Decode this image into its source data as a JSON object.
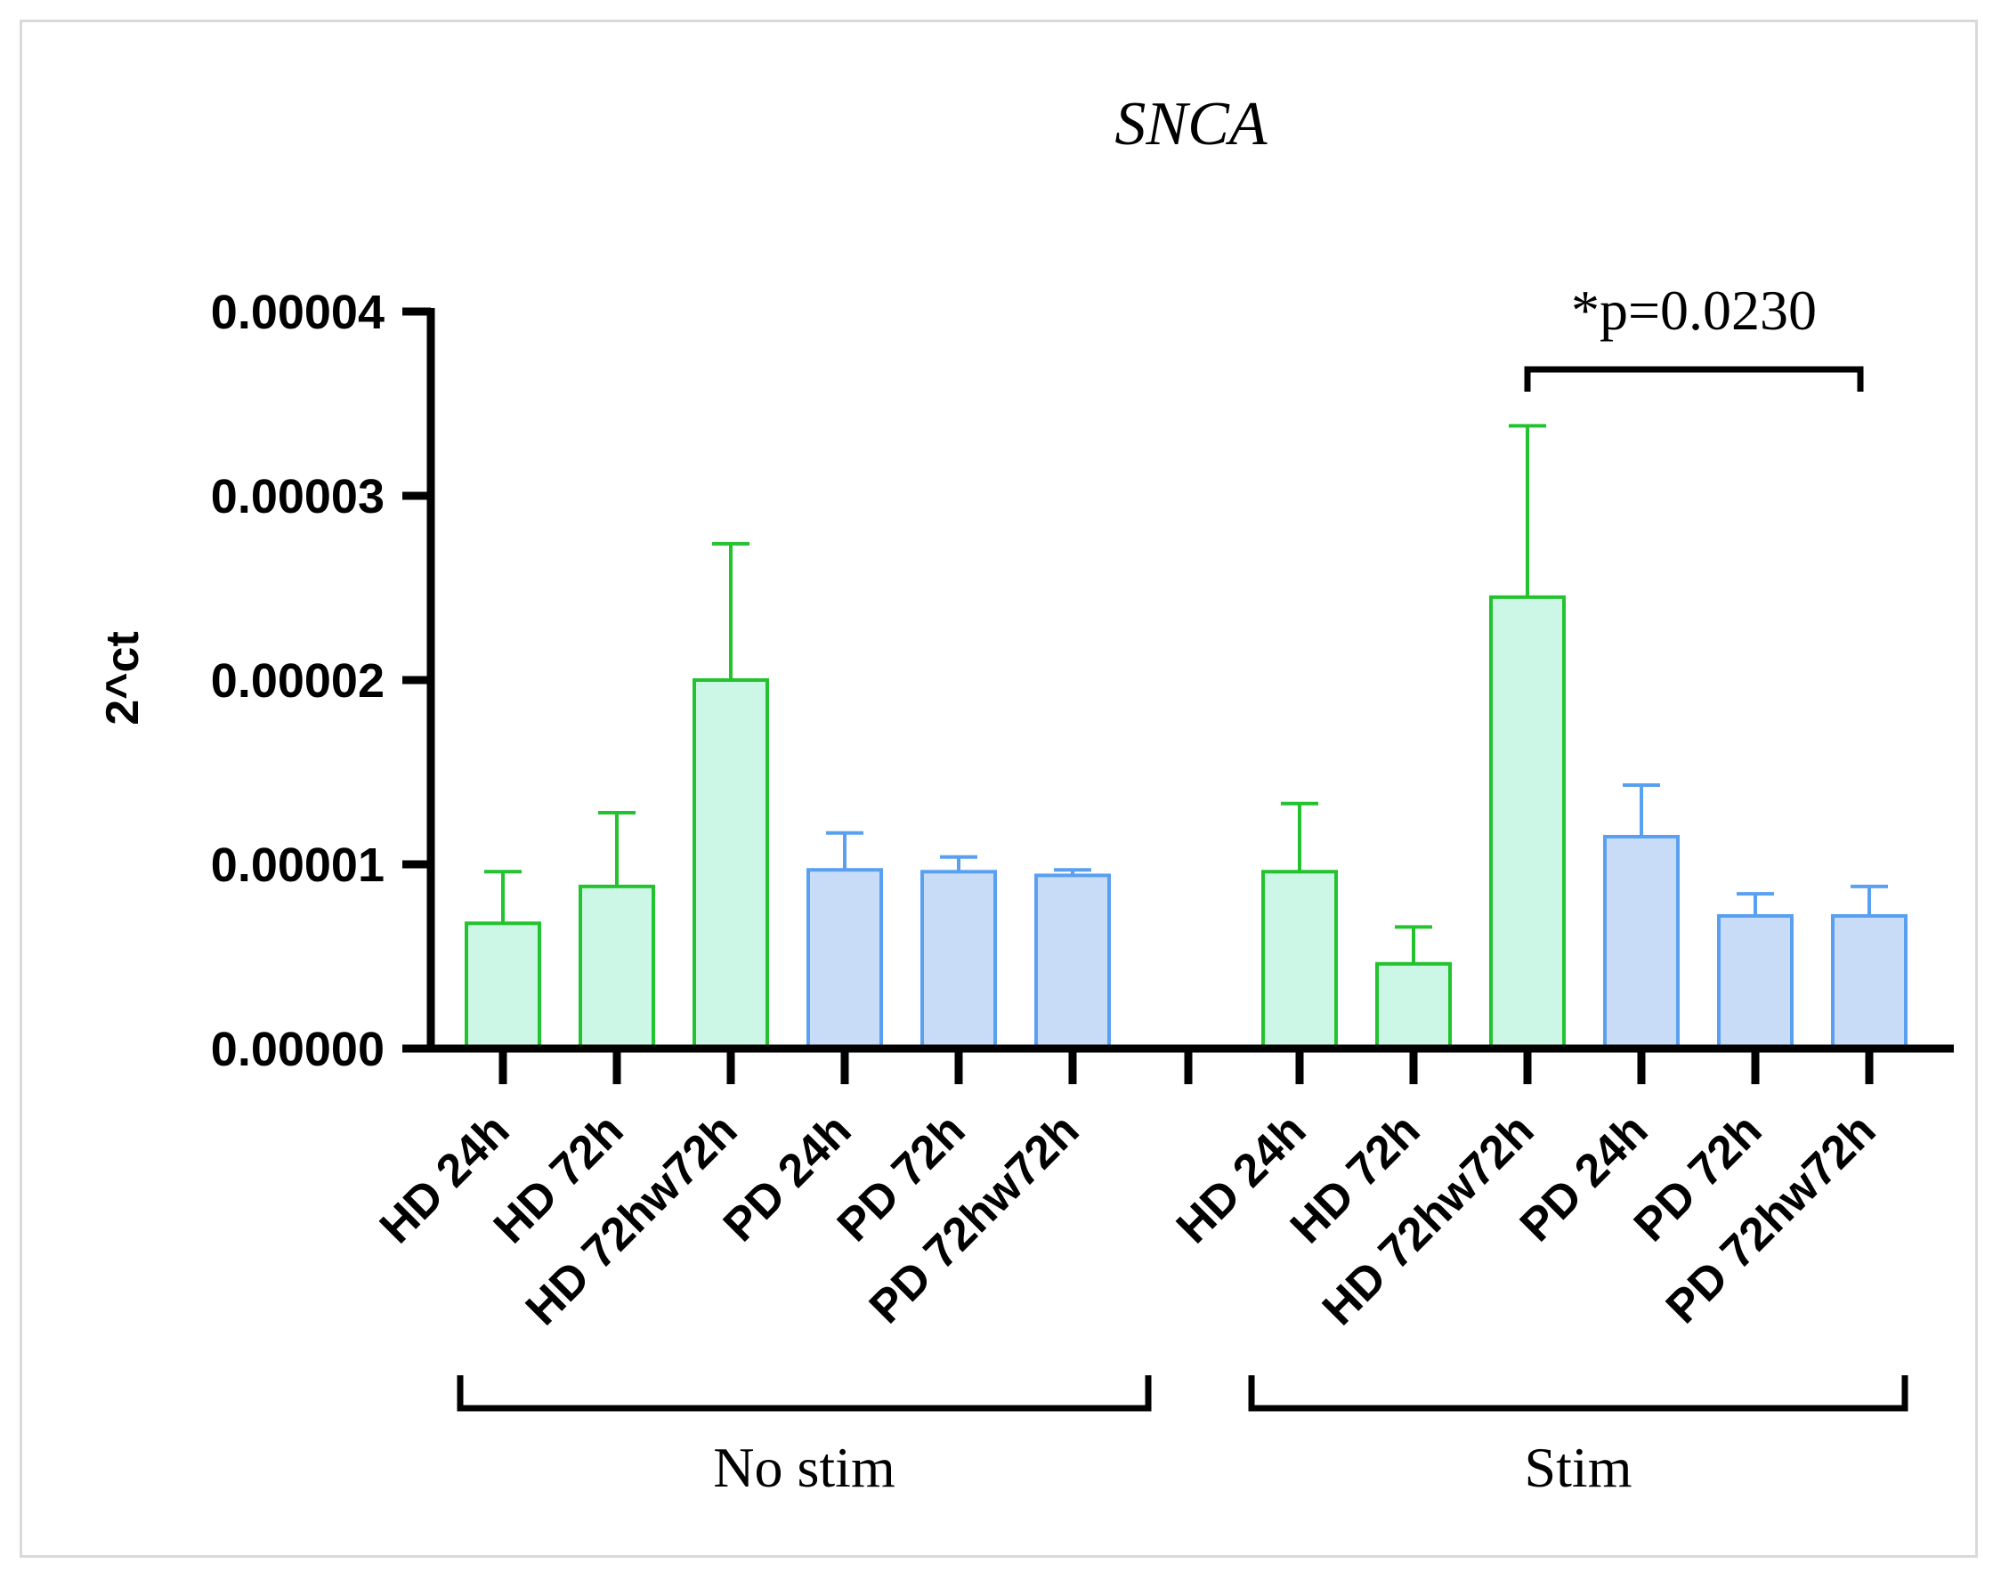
{
  "chart_data": {
    "type": "bar",
    "title": "SNCA",
    "ylabel": "2^ct",
    "xlabel": "",
    "ylim": [
      0,
      4e-05
    ],
    "yticks": [
      "0.00000",
      "0.00001",
      "0.00002",
      "0.00003",
      "0.00004"
    ],
    "groups": [
      {
        "name": "No stim",
        "categories": [
          "HD 24h",
          "HD 72h",
          "HD 72hw72h",
          "PD 24h",
          "PD 72h",
          "PD 72hw72h"
        ],
        "values": [
          6.8e-06,
          8.8e-06,
          2e-05,
          9.7e-06,
          9.6e-06,
          9.4e-06
        ],
        "errors": [
          2.8e-06,
          4e-06,
          7.4e-06,
          2e-06,
          8e-07,
          3e-07
        ]
      },
      {
        "name": "Stim",
        "categories": [
          "HD 24h",
          "HD 72h",
          "HD 72hw72h",
          "PD 24h",
          "PD 72h",
          "PD 72hw72h"
        ],
        "values": [
          9.6e-06,
          4.6e-06,
          2.45e-05,
          1.15e-05,
          7.2e-06,
          7.2e-06
        ],
        "errors": [
          3.7e-06,
          2e-06,
          9.3e-06,
          2.8e-06,
          1.2e-06,
          1.6e-06
        ]
      }
    ],
    "series_colors": {
      "HD": {
        "fill": "#ccf7e6",
        "stroke": "#22c32e"
      },
      "PD": {
        "fill": "#c9dcf7",
        "stroke": "#5aa0f0"
      }
    },
    "annotation": {
      "text": "*p=0.0230",
      "from_group": 1,
      "from_index": 2,
      "to_index": 5
    }
  }
}
